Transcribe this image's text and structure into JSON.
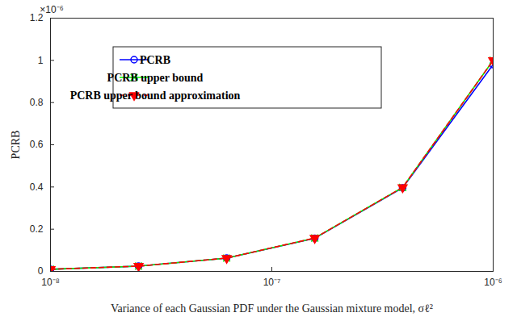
{
  "chart_data": {
    "type": "line",
    "x_label": "Variance of each Gaussian PDF under the Gaussian mixture model, σℓ²",
    "y_label": "PCRB",
    "annotations": [
      "×10⁻⁶"
    ],
    "log": "x",
    "grid": false,
    "legend": "upper left",
    "x": [
      1e-08,
      2.5e-08,
      6.25e-08,
      1.5625e-07,
      3.9e-07,
      1e-06
    ],
    "series": [
      {
        "name": "PCRB",
        "color": "#0000ff",
        "marker": "o",
        "line_style": "solid",
        "values": [
          1e-08,
          2.5e-08,
          6.3e-08,
          1.57e-07,
          3.96e-07,
          9.8e-07
        ]
      },
      {
        "name": "PCRB upper bound",
        "color": "#00ff00",
        "marker": "x",
        "line_style": "solid",
        "values": [
          1e-08,
          2.5e-08,
          6.3e-08,
          1.58e-07,
          3.98e-07,
          1e-06
        ]
      },
      {
        "name": "PCRB upper bound approximation",
        "color": "#ff0000",
        "marker": "v",
        "line_style": "dashed",
        "values": [
          1e-08,
          2.5e-08,
          6.3e-08,
          1.58e-07,
          3.98e-07,
          1e-06
        ]
      }
    ],
    "xlim": [
      1e-08,
      1e-06
    ],
    "xticks": [
      {
        "value": 1e-08,
        "label": "10⁻⁸"
      },
      {
        "value": 1e-07,
        "label": "10⁻⁷"
      },
      {
        "value": 1e-06,
        "label": "10⁻⁶"
      }
    ],
    "ylim": [
      0,
      1.2e-06
    ],
    "yticks": [
      0,
      {
        "value": 2e-07,
        "label": "0.2"
      },
      {
        "value": 4e-07,
        "label": "0.4"
      },
      {
        "value": 6e-07,
        "label": "0.6"
      },
      {
        "value": 8e-07,
        "label": "0.8"
      },
      {
        "value": 1e-06,
        "label": "1"
      },
      {
        "value": 1.2e-06,
        "label": "1.2"
      }
    ]
  }
}
